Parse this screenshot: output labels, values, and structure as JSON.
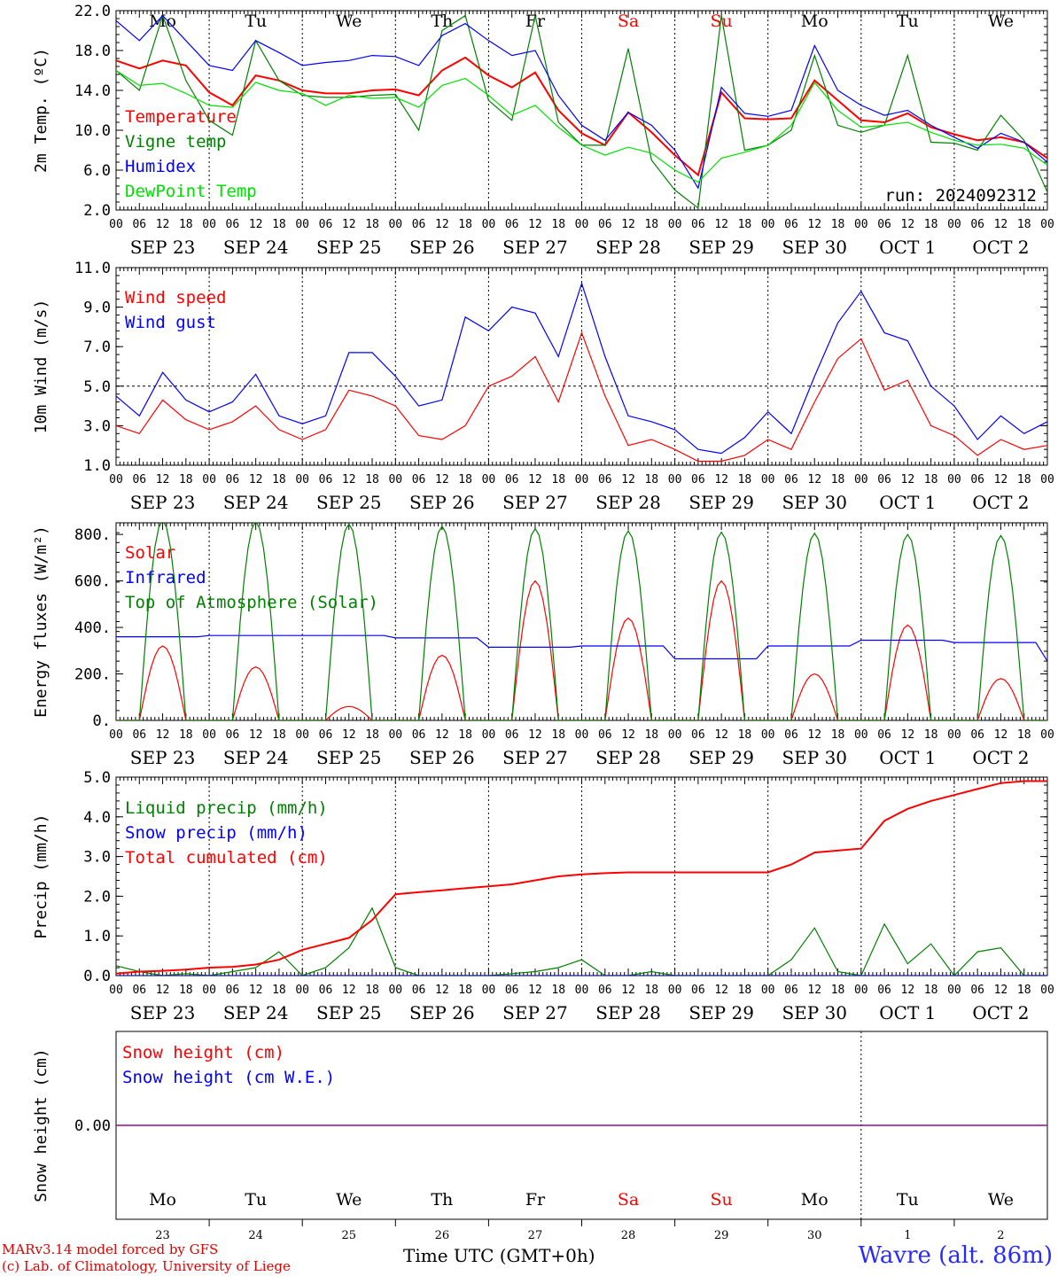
{
  "chart_data": [
    {
      "type": "line",
      "ylabel": "2m Temp. (ºC)",
      "ylim": [
        2.0,
        22.0
      ],
      "yticks": [
        "2.0",
        "6.0",
        "10.0",
        "14.0",
        "18.0",
        "22.0"
      ],
      "annotation": "run: 2024092312",
      "x_hours": [
        0,
        6,
        12,
        18,
        24,
        30,
        36,
        42,
        48,
        54,
        60,
        66,
        72,
        78,
        84,
        90,
        96,
        102,
        108,
        114,
        120,
        126,
        132,
        138,
        144,
        150,
        156,
        162,
        168,
        174,
        180,
        186,
        192,
        198,
        204,
        210,
        216,
        222,
        228,
        234,
        240
      ],
      "series": [
        {
          "name": "Temperature",
          "color": "#ff0000",
          "values": [
            17,
            16.2,
            17,
            16.5,
            13.8,
            12.5,
            15.5,
            15,
            14,
            13.7,
            13.7,
            14,
            14.1,
            13.5,
            16,
            17.3,
            15.5,
            14.3,
            15.8,
            12,
            9.7,
            8.5,
            11.8,
            9.8,
            7.5,
            5.5,
            13.8,
            11.2,
            11.1,
            11.2,
            15,
            13,
            11,
            10.8,
            11.7,
            10.3,
            9.6,
            9,
            9.3,
            8.8,
            7.2
          ]
        },
        {
          "name": "Vigne temp",
          "color": "#008000",
          "values": [
            16,
            14,
            21.5,
            15,
            11,
            9.5,
            19,
            15,
            13.5,
            13.3,
            13.3,
            13.5,
            13.6,
            10,
            20,
            21.5,
            13,
            11,
            21.5,
            10.8,
            8.5,
            8.5,
            18.2,
            7,
            4,
            2.2,
            21.5,
            8,
            8.5,
            10,
            17.5,
            10.5,
            9.8,
            10.5,
            17.5,
            8.8,
            8.7,
            8,
            11.5,
            9,
            3.8
          ]
        },
        {
          "name": "Humidex",
          "color": "#0000ff",
          "values": [
            21,
            19,
            21.5,
            19,
            16.5,
            16,
            19,
            17.8,
            16.5,
            16.8,
            17,
            17.5,
            17.4,
            16.5,
            19.5,
            20.7,
            19,
            17.5,
            18,
            13.5,
            10.5,
            9,
            11.8,
            10.5,
            8,
            4.2,
            14.3,
            11.7,
            11.4,
            12,
            18.5,
            14,
            12.5,
            11.5,
            12,
            10.5,
            9.3,
            8.2,
            9.7,
            8.8,
            6.8
          ]
        },
        {
          "name": "DewPoint Temp",
          "color": "#00e000",
          "values": [
            16,
            14.5,
            14.7,
            13.7,
            12.5,
            12.3,
            14.8,
            14,
            13.7,
            12.5,
            13.5,
            13.2,
            13.3,
            12.3,
            14.5,
            15.2,
            13.5,
            11.5,
            12.5,
            10.3,
            8.5,
            7.5,
            8.3,
            7.7,
            6,
            4.8,
            7.2,
            7.8,
            8.5,
            10.5,
            14.8,
            12,
            10.3,
            10.5,
            10.8,
            9.8,
            9,
            8.5,
            8.6,
            8.2,
            6.5
          ]
        }
      ]
    },
    {
      "type": "line",
      "ylabel": "10m Wind (m/s)",
      "ylim": [
        1.0,
        11.0
      ],
      "yticks": [
        "1.0",
        "3.0",
        "5.0",
        "7.0",
        "9.0",
        "11.0"
      ],
      "reference_line": 5.0,
      "x_hours": [
        0,
        6,
        12,
        18,
        24,
        30,
        36,
        42,
        48,
        54,
        60,
        66,
        72,
        78,
        84,
        90,
        96,
        102,
        108,
        114,
        120,
        126,
        132,
        138,
        144,
        150,
        156,
        162,
        168,
        174,
        180,
        186,
        192,
        198,
        204,
        210,
        216,
        222,
        228,
        234,
        240
      ],
      "series": [
        {
          "name": "Wind speed",
          "color": "#ff0000",
          "values": [
            3,
            2.6,
            4.3,
            3.3,
            2.8,
            3.2,
            4,
            2.8,
            2.3,
            2.8,
            4.8,
            4.5,
            4,
            2.5,
            2.3,
            3,
            5,
            5.5,
            6.5,
            4.2,
            7.7,
            4.5,
            2,
            2.3,
            1.8,
            1.2,
            1.2,
            1.5,
            2.3,
            1.8,
            4.2,
            6.4,
            7.4,
            4.8,
            5.3,
            3,
            2.5,
            1.5,
            2.3,
            1.8,
            2
          ]
        },
        {
          "name": "Wind gust",
          "color": "#0000ff",
          "values": [
            4.5,
            3.5,
            5.7,
            4.3,
            3.7,
            4.2,
            5.6,
            3.5,
            3.1,
            3.5,
            6.7,
            6.7,
            5.5,
            4,
            4.3,
            8.5,
            7.8,
            9,
            8.7,
            6.5,
            10.2,
            6.5,
            3.5,
            3.2,
            2.8,
            1.8,
            1.6,
            2.4,
            3.7,
            2.6,
            5.5,
            8.2,
            9.8,
            7.7,
            7.3,
            5,
            4,
            2.3,
            3.5,
            2.6,
            3.2
          ]
        }
      ]
    },
    {
      "type": "line",
      "ylabel": "Energy fluxes (W/m²)",
      "ylim": [
        0,
        850
      ],
      "yticks": [
        "0.",
        "200.",
        "400.",
        "600.",
        "800."
      ],
      "sunrise_hour": 6,
      "sunset_hour": 18,
      "series": [
        {
          "name": "Solar",
          "color": "#ff0000",
          "daily_peak": [
            320,
            230,
            60,
            280,
            600,
            440,
            600,
            200,
            410,
            180
          ]
        },
        {
          "name": "Infrared",
          "color": "#0000ff",
          "daily_level": [
            360,
            365,
            365,
            355,
            315,
            320,
            265,
            320,
            345,
            335
          ]
        },
        {
          "name": "Top of Atmosphere (Solar)",
          "color": "#008000",
          "daily_peak": [
            860,
            855,
            845,
            835,
            825,
            815,
            810,
            805,
            800,
            795
          ]
        }
      ]
    },
    {
      "type": "line",
      "ylabel": "Precip (mm/h)",
      "ylim": [
        0.0,
        5.0
      ],
      "yticks": [
        "0.0",
        "1.0",
        "2.0",
        "3.0",
        "4.0",
        "5.0"
      ],
      "x_hours": [
        0,
        6,
        12,
        18,
        24,
        30,
        36,
        42,
        48,
        54,
        60,
        66,
        72,
        78,
        84,
        90,
        96,
        102,
        108,
        114,
        120,
        126,
        132,
        138,
        144,
        150,
        156,
        162,
        168,
        174,
        180,
        186,
        192,
        198,
        204,
        210,
        216,
        222,
        228,
        234,
        240
      ],
      "series": [
        {
          "name": "Liquid precip (mm/h)",
          "color": "#008000",
          "values": [
            0.25,
            0.1,
            0,
            0.05,
            0,
            0.1,
            0.2,
            0.6,
            0,
            0.2,
            0.7,
            1.7,
            0.2,
            0,
            0,
            0,
            0,
            0.05,
            0.1,
            0.2,
            0.4,
            0,
            0,
            0.1,
            0,
            0,
            0,
            0,
            0,
            0.4,
            1.2,
            0.1,
            0,
            1.3,
            0.3,
            0.8,
            0,
            0.6,
            0.7,
            0,
            0
          ]
        },
        {
          "name": "Snow precip (mm/h)",
          "color": "#0000ff",
          "values": [
            0,
            0,
            0,
            0,
            0,
            0,
            0,
            0,
            0,
            0,
            0,
            0,
            0,
            0,
            0,
            0,
            0,
            0,
            0,
            0,
            0,
            0,
            0,
            0,
            0,
            0,
            0,
            0,
            0,
            0,
            0,
            0,
            0,
            0,
            0,
            0,
            0,
            0,
            0,
            0,
            0
          ]
        },
        {
          "name": "Total cumulated (cm)",
          "color": "#ff0000",
          "values": [
            0.05,
            0.1,
            0.12,
            0.15,
            0.2,
            0.22,
            0.28,
            0.4,
            0.65,
            0.8,
            0.95,
            1.4,
            2.05,
            2.1,
            2.15,
            2.2,
            2.25,
            2.3,
            2.4,
            2.5,
            2.55,
            2.58,
            2.6,
            2.6,
            2.6,
            2.6,
            2.6,
            2.6,
            2.6,
            2.8,
            3.1,
            3.15,
            3.2,
            3.9,
            4.2,
            4.4,
            4.55,
            4.7,
            4.85,
            4.9,
            4.9
          ]
        }
      ]
    },
    {
      "type": "line",
      "ylabel": "Snow height (cm)",
      "yticks": [
        "0.00"
      ],
      "series": [
        {
          "name": "Snow height (cm)",
          "color": "#ff0000",
          "values": [
            0,
            0
          ]
        },
        {
          "name": "Snow height (cm W.E.)",
          "color": "#0000ff",
          "values": [
            0,
            0
          ]
        }
      ]
    }
  ],
  "axis": {
    "hour_ticks": [
      "00",
      "06",
      "12",
      "18"
    ],
    "end_tick": "00",
    "dates": [
      "SEP 23",
      "SEP 24",
      "SEP 25",
      "SEP 26",
      "SEP 27",
      "SEP 28",
      "SEP 29",
      "SEP 30",
      "OCT  1",
      "OCT  2"
    ],
    "weekdays": [
      "Mo",
      "Tu",
      "We",
      "Th",
      "Fr",
      "Sa",
      "Su",
      "Mo",
      "Tu",
      "We"
    ],
    "day_numbers": [
      "23",
      "24",
      "25",
      "26",
      "27",
      "28",
      "29",
      "30",
      "1",
      "2"
    ],
    "weekend_color": "#ff0000"
  },
  "footer": {
    "model": "MARv3.14 model forced by GFS",
    "copyright": "(c) Lab. of Climatology, University of Liege",
    "time_label": "Time UTC (GMT+0h)",
    "station": "Wavre (alt. 86m)"
  }
}
